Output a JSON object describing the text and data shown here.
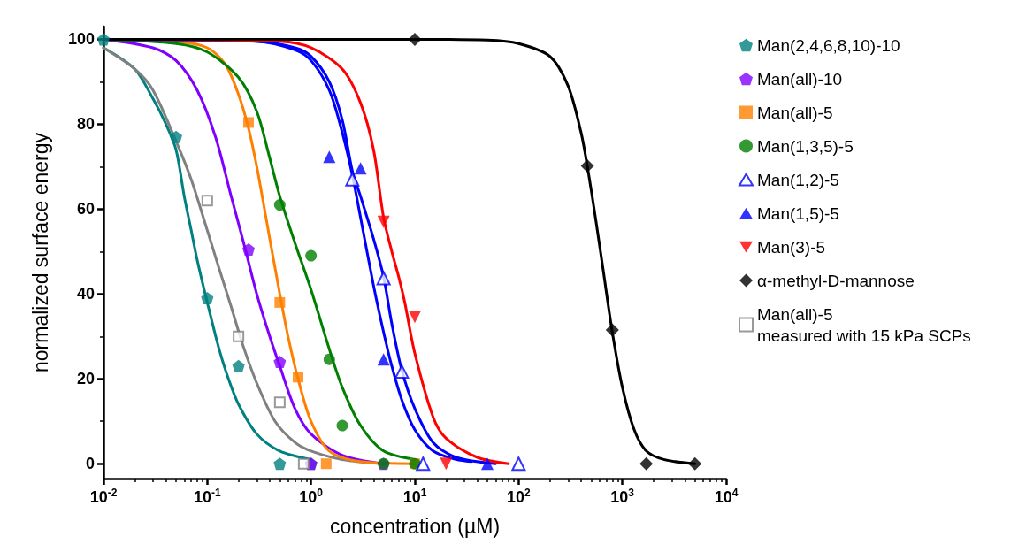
{
  "chart_data": {
    "type": "scatter",
    "xlabel": "concentration (µM)",
    "ylabel": "normalized surface energy",
    "log": "x",
    "xlim": [
      0.01,
      10000
    ],
    "xticks": [
      {
        "value": 0.01,
        "label": "10$^{-2}$"
      },
      {
        "value": 0.1,
        "label": "10$^{-1}$"
      },
      {
        "value": 1,
        "label": "10$^{0}$"
      },
      {
        "value": 10,
        "label": "10$^{1}$"
      },
      {
        "value": 100,
        "label": "10$^{2}$"
      },
      {
        "value": 1000,
        "label": "10$^{3}$"
      },
      {
        "value": 10000,
        "label": "10$^{4}$"
      }
    ],
    "ylim": [
      -3.5,
      103
    ],
    "yticks": [
      0,
      20,
      40,
      60,
      80,
      100
    ],
    "grid": false,
    "legend": "right",
    "series": [
      {
        "type": "line",
        "color": "#008080",
        "marker": "none",
        "x": [
          0.01,
          0.02,
          0.03,
          0.04,
          0.05,
          0.06,
          0.07,
          0.08,
          0.1,
          0.13,
          0.16,
          0.2,
          0.3,
          0.5,
          1
        ],
        "values": [
          98,
          93,
          86,
          80,
          74,
          63,
          55,
          48,
          38,
          27,
          20,
          14,
          7,
          3,
          1
        ]
      },
      {
        "type": "line",
        "color": "#808080",
        "marker": "none",
        "x": [
          0.01,
          0.02,
          0.03,
          0.05,
          0.07,
          0.1,
          0.13,
          0.17,
          0.22,
          0.3,
          0.45,
          0.7,
          1,
          2,
          5
        ],
        "values": [
          98,
          93,
          88,
          76,
          67,
          55,
          46,
          37,
          28,
          19,
          10,
          5,
          3,
          1,
          0
        ]
      },
      {
        "type": "line",
        "color": "#8000ff",
        "marker": "none",
        "x": [
          0.01,
          0.03,
          0.05,
          0.08,
          0.12,
          0.17,
          0.23,
          0.3,
          0.4,
          0.5,
          0.7,
          1,
          2,
          5
        ],
        "values": [
          100,
          98,
          95,
          88,
          77,
          63,
          51,
          40,
          30,
          23,
          13,
          7,
          2,
          0
        ]
      },
      {
        "type": "line",
        "color": "#ff8000",
        "marker": "none",
        "x": [
          0.01,
          0.05,
          0.1,
          0.15,
          0.2,
          0.25,
          0.3,
          0.35,
          0.4,
          0.5,
          0.6,
          0.75,
          1,
          1.5,
          3,
          10
        ],
        "values": [
          100,
          99.5,
          98,
          94,
          87,
          79,
          70,
          61,
          53,
          40,
          30,
          20,
          10,
          3,
          0.5,
          0
        ]
      },
      {
        "type": "line",
        "color": "#008000",
        "marker": "none",
        "x": [
          0.01,
          0.05,
          0.1,
          0.2,
          0.3,
          0.4,
          0.5,
          0.7,
          1,
          1.5,
          2,
          3,
          5,
          10
        ],
        "values": [
          100,
          99,
          97,
          91,
          83,
          72,
          63,
          52,
          41,
          27,
          18,
          9,
          3,
          1
        ]
      },
      {
        "type": "line",
        "color": "#0000ff",
        "marker": "none",
        "x": [
          0.01,
          0.3,
          0.7,
          1,
          1.5,
          2,
          2.5,
          3,
          4,
          5,
          6,
          7.5,
          10,
          15,
          25,
          60
        ],
        "values": [
          100,
          99.5,
          98,
          96,
          90,
          81,
          69,
          63,
          53,
          44,
          33,
          22,
          13,
          5,
          1.5,
          0
        ]
      },
      {
        "type": "line",
        "color": "#0000ff",
        "marker": "none",
        "x": [
          0.01,
          0.3,
          0.7,
          1,
          1.5,
          2,
          2.5,
          3,
          4,
          5,
          6,
          7.5,
          10,
          15,
          25,
          35
        ],
        "values": [
          100,
          99.5,
          97.5,
          95,
          88,
          78,
          68,
          58,
          42,
          31,
          23,
          15,
          8,
          3,
          1,
          0.5
        ]
      },
      {
        "name": "Man(2,4,6,8,10)-10",
        "color": "#008080",
        "x": [
          0.01,
          0.05,
          0.1,
          0.2,
          0.5,
          1
        ],
        "values": [
          100,
          77,
          39,
          23,
          0,
          0
        ]
      },
      {
        "type": "line",
        "color": "#ff0000",
        "marker": "none",
        "x": [
          0.01,
          0.5,
          1,
          2,
          3,
          4,
          5,
          6,
          7,
          8,
          10,
          15,
          20,
          40,
          80
        ],
        "values": [
          100,
          99.5,
          98,
          93,
          85,
          74,
          58,
          50,
          44,
          38,
          26,
          11,
          6,
          1.5,
          0
        ]
      },
      {
        "type": "line",
        "color": "#000000",
        "marker": "none",
        "x": [
          0.01,
          10,
          50,
          100,
          200,
          300,
          400,
          460,
          550,
          650,
          800,
          1000,
          1300,
          1700,
          2500,
          5000
        ],
        "values": [
          100,
          100,
          99.8,
          99,
          96,
          89,
          78,
          70,
          58,
          46,
          31,
          18,
          8,
          3,
          1,
          0
        ]
      },
      {
        "name": "Man(all)-10",
        "color": "#8000ff",
        "x": [
          0.25,
          0.5,
          1,
          5
        ],
        "values": [
          50.5,
          24,
          0,
          0
        ]
      },
      {
        "name": "Man(all)-5",
        "color": "#ff8000",
        "marker": "square",
        "x": [
          0.25,
          0.5,
          0.75,
          1.4,
          10
        ],
        "values": [
          80.4,
          38,
          20.4,
          0,
          0
        ]
      },
      {
        "name": "Man(1,3,5)-5",
        "color": "#008000",
        "marker": "circle",
        "x": [
          0.5,
          1,
          1.5,
          2,
          5,
          10
        ],
        "values": [
          61,
          49,
          24.6,
          9,
          0,
          0
        ]
      },
      {
        "name": "Man(1,2)-5",
        "color": "#0000ff",
        "marker": "triangle-open",
        "x": [
          2.5,
          5,
          7.5,
          12,
          100
        ],
        "values": [
          67,
          43.7,
          21.7,
          0,
          0
        ]
      },
      {
        "name": "Man(1,5)-5",
        "color": "#0000ff",
        "marker": "triangle",
        "x": [
          1.5,
          3,
          5,
          50
        ],
        "values": [
          72.3,
          69.6,
          24.6,
          0
        ]
      },
      {
        "name": "Man(3)-5",
        "color": "#ff0000",
        "marker": "triangle-down",
        "x": [
          5,
          10,
          20
        ],
        "values": [
          57,
          34.6,
          0
        ]
      },
      {
        "name": "α-methyl-D-mannose",
        "color": "#000000",
        "marker": "diamond",
        "x": [
          10,
          460,
          800,
          1700,
          5000
        ],
        "values": [
          100,
          70.2,
          31.5,
          0,
          0
        ]
      },
      {
        "name": "Man(all)-5\nmeasured with 15 kPa SCPs",
        "color": "#808080",
        "marker": "square-open",
        "x": [
          0.1,
          0.2,
          0.5,
          0.85
        ],
        "values": [
          62,
          30,
          14.5,
          0
        ]
      }
    ]
  }
}
